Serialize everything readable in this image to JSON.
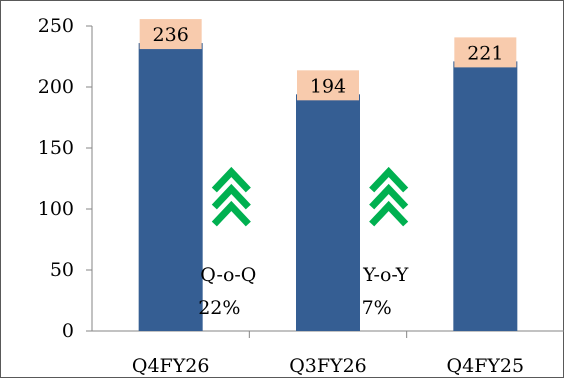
{
  "chart_data": {
    "type": "bar",
    "categories": [
      "Q4FY26",
      "Q3FY26",
      "Q4FY25"
    ],
    "values": [
      236,
      194,
      221
    ],
    "data_labels": [
      "236",
      "194",
      "221"
    ],
    "ylim": [
      0,
      250
    ],
    "yticks": [
      0,
      50,
      100,
      150,
      200,
      250
    ],
    "title": "",
    "xlabel": "",
    "ylabel": "",
    "grid": false,
    "annotations": [
      {
        "icon": "triple-chevron-up-icon",
        "label_line1": "Q-o-Q",
        "label_line2": "22%"
      },
      {
        "icon": "triple-chevron-up-icon",
        "label_line1": "Y-o-Y",
        "label_line2": "7%"
      }
    ],
    "colors": {
      "bar": "#355E93",
      "label_box": "#F8CBAD",
      "arrow": "#00B050",
      "axis": "#868686",
      "border": "#595959",
      "text": "#000000"
    }
  }
}
